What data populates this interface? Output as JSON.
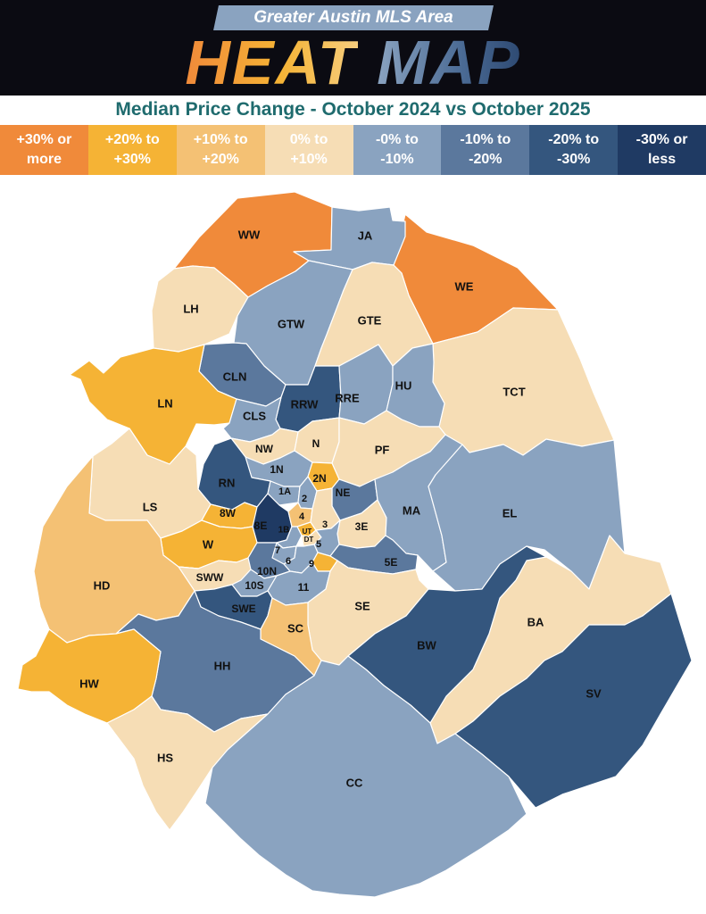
{
  "header": {
    "subtitle": "Greater Austin MLS Area",
    "title_part1": "HEAT",
    "title_part2": "MAP"
  },
  "map_title": "Median Price Change - October 2024 vs October 2025",
  "legend": [
    {
      "label": "+30% or\nmore",
      "color": "#f08a3a",
      "text_color": "#ffffff"
    },
    {
      "label": "+20% to\n+30%",
      "color": "#f5b335",
      "text_color": "#ffffff"
    },
    {
      "label": "+10% to\n+20%",
      "color": "#f4c174",
      "text_color": "#ffffff"
    },
    {
      "label": "0% to\n+10%",
      "color": "#f6ddb5",
      "text_color": "#ffffff"
    },
    {
      "label": "-0% to\n-10%",
      "color": "#8aa3c0",
      "text_color": "#ffffff"
    },
    {
      "label": "-10% to\n-20%",
      "color": "#5b789d",
      "text_color": "#ffffff"
    },
    {
      "label": "-20% to\n-30%",
      "color": "#34567e",
      "text_color": "#ffffff"
    },
    {
      "label": "-30% or\nless",
      "color": "#1f3a63",
      "text_color": "#ffffff"
    }
  ],
  "areas": [
    {
      "code": "WW",
      "category": 0
    },
    {
      "code": "WE",
      "category": 0
    },
    {
      "code": "JA",
      "category": 4
    },
    {
      "code": "LH",
      "category": 3
    },
    {
      "code": "GTW",
      "category": 4
    },
    {
      "code": "GTE",
      "category": 3
    },
    {
      "code": "TCT",
      "category": 3
    },
    {
      "code": "CLN",
      "category": 5
    },
    {
      "code": "LN",
      "category": 1
    },
    {
      "code": "RRW",
      "category": 6
    },
    {
      "code": "RRE",
      "category": 4
    },
    {
      "code": "HU",
      "category": 4
    },
    {
      "code": "CLS",
      "category": 4
    },
    {
      "code": "NW",
      "category": 3
    },
    {
      "code": "N",
      "category": 3
    },
    {
      "code": "PF",
      "category": 3
    },
    {
      "code": "1N",
      "category": 4
    },
    {
      "code": "2N",
      "category": 1
    },
    {
      "code": "RN",
      "category": 6
    },
    {
      "code": "NE",
      "category": 5
    },
    {
      "code": "1A",
      "category": 4
    },
    {
      "code": "2",
      "category": 4
    },
    {
      "code": "LS",
      "category": 3
    },
    {
      "code": "8W",
      "category": 1
    },
    {
      "code": "8E",
      "category": 7
    },
    {
      "code": "4",
      "category": 2
    },
    {
      "code": "UT",
      "category": 1
    },
    {
      "code": "1B",
      "category": 4
    },
    {
      "code": "3",
      "category": 3
    },
    {
      "code": "3E",
      "category": 3
    },
    {
      "code": "MA",
      "category": 4
    },
    {
      "code": "EL",
      "category": 4
    },
    {
      "code": "DT",
      "category": 3
    },
    {
      "code": "W",
      "category": 1
    },
    {
      "code": "7",
      "category": 4
    },
    {
      "code": "5",
      "category": 4
    },
    {
      "code": "5E",
      "category": 5
    },
    {
      "code": "6",
      "category": 4
    },
    {
      "code": "9",
      "category": 1
    },
    {
      "code": "HD",
      "category": 2
    },
    {
      "code": "SWW",
      "category": 3
    },
    {
      "code": "10N",
      "category": 5
    },
    {
      "code": "10S",
      "category": 4
    },
    {
      "code": "11",
      "category": 4
    },
    {
      "code": "SE",
      "category": 3
    },
    {
      "code": "SWE",
      "category": 6
    },
    {
      "code": "SC",
      "category": 2
    },
    {
      "code": "BA",
      "category": 3
    },
    {
      "code": "BW",
      "category": 6
    },
    {
      "code": "HH",
      "category": 5
    },
    {
      "code": "HW",
      "category": 1
    },
    {
      "code": "SV",
      "category": 6
    },
    {
      "code": "HS",
      "category": 3
    },
    {
      "code": "CC",
      "category": 4
    }
  ]
}
